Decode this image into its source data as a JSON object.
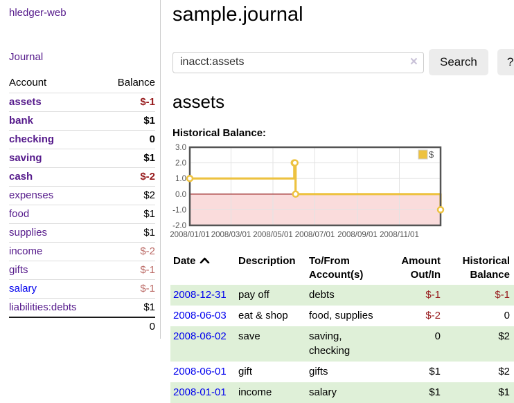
{
  "app": {
    "brand": "hledger-web",
    "nav_journal": "Journal"
  },
  "sidebar": {
    "accounts_header": {
      "account": "Account",
      "balance": "Balance"
    },
    "accounts": [
      {
        "name": "assets",
        "depth": 0,
        "balance": "$-1"
      },
      {
        "name": "bank",
        "depth": 1,
        "balance": "$1"
      },
      {
        "name": "checking",
        "depth": 2,
        "balance": "0"
      },
      {
        "name": "saving",
        "depth": 2,
        "balance": "$1"
      },
      {
        "name": "cash",
        "depth": 1,
        "balance": "$-2"
      },
      {
        "name": "expenses",
        "depth": 0,
        "balance": "$2"
      },
      {
        "name": "food",
        "depth": 1,
        "balance": "$1"
      },
      {
        "name": "supplies",
        "depth": 1,
        "balance": "$1"
      },
      {
        "name": "income",
        "depth": 0,
        "balance": "$-2"
      },
      {
        "name": "gifts",
        "depth": 1,
        "balance": "$-1"
      },
      {
        "name": "salary",
        "depth": 1,
        "balance": "$-1"
      },
      {
        "name": "liabilities:debts",
        "depth": 0,
        "balance": "$1"
      }
    ],
    "total": "0"
  },
  "header": {
    "title": "sample.journal"
  },
  "search": {
    "value": "inacct:assets",
    "clear_icon": "×",
    "button": "Search",
    "help_button": "?"
  },
  "account_page": {
    "heading": "assets",
    "chart_label": "Historical Balance:"
  },
  "icons": {
    "sort_ascending": "chevron-up",
    "clear_search": "x-clear"
  },
  "colors": {
    "link_visited": "#551a8b",
    "link_unvisited": "#0000ee",
    "negative_strong": "#96191b",
    "negative_soft": "#bb6a66",
    "row_positive_stripe": "#dff0d8",
    "series_yellow": "#edc240"
  },
  "chart_data": {
    "type": "line",
    "style": "step",
    "title": "Historical Balance:",
    "series": [
      {
        "name": "$",
        "color": "#edc240",
        "points": [
          {
            "x": "2008-01-01",
            "y": 1
          },
          {
            "x": "2008-06-01",
            "y": 2
          },
          {
            "x": "2008-06-02",
            "y": 2
          },
          {
            "x": "2008-06-03",
            "y": 0
          },
          {
            "x": "2008-12-31",
            "y": -1
          }
        ]
      }
    ],
    "x_ticks": [
      "2008/01/01",
      "2008/03/01",
      "2008/05/01",
      "2008/07/01",
      "2008/09/01",
      "2008/11/01"
    ],
    "y_ticks": [
      "3.0",
      "2.0",
      "1.0",
      "0.0",
      "-1.0",
      "-2.0"
    ],
    "xlim": [
      "2008-01-01",
      "2008-12-31"
    ],
    "ylim": [
      -2,
      3
    ],
    "grid": true,
    "negative_region_color": "#fadcdc",
    "zero_line_color": "#8b0000",
    "legend": {
      "label": "$",
      "position": "top-right"
    }
  },
  "register": {
    "columns": {
      "date": "Date",
      "description": "Description",
      "accounts": "To/From Account(s)",
      "amount": "Amount Out/In",
      "balance": "Historical Balance"
    },
    "rows": [
      {
        "date": "2008-12-31",
        "description": "pay off",
        "accounts": "debts",
        "amount": "$-1",
        "balance": "$-1"
      },
      {
        "date": "2008-06-03",
        "description": "eat & shop",
        "accounts": "food, supplies",
        "amount": "$-2",
        "balance": "0"
      },
      {
        "date": "2008-06-02",
        "description": "save",
        "accounts": "saving, checking",
        "amount": "0",
        "balance": "$2"
      },
      {
        "date": "2008-06-01",
        "description": "gift",
        "accounts": "gifts",
        "amount": "$1",
        "balance": "$2"
      },
      {
        "date": "2008-01-01",
        "description": "income",
        "accounts": "salary",
        "amount": "$1",
        "balance": "$1"
      }
    ]
  }
}
